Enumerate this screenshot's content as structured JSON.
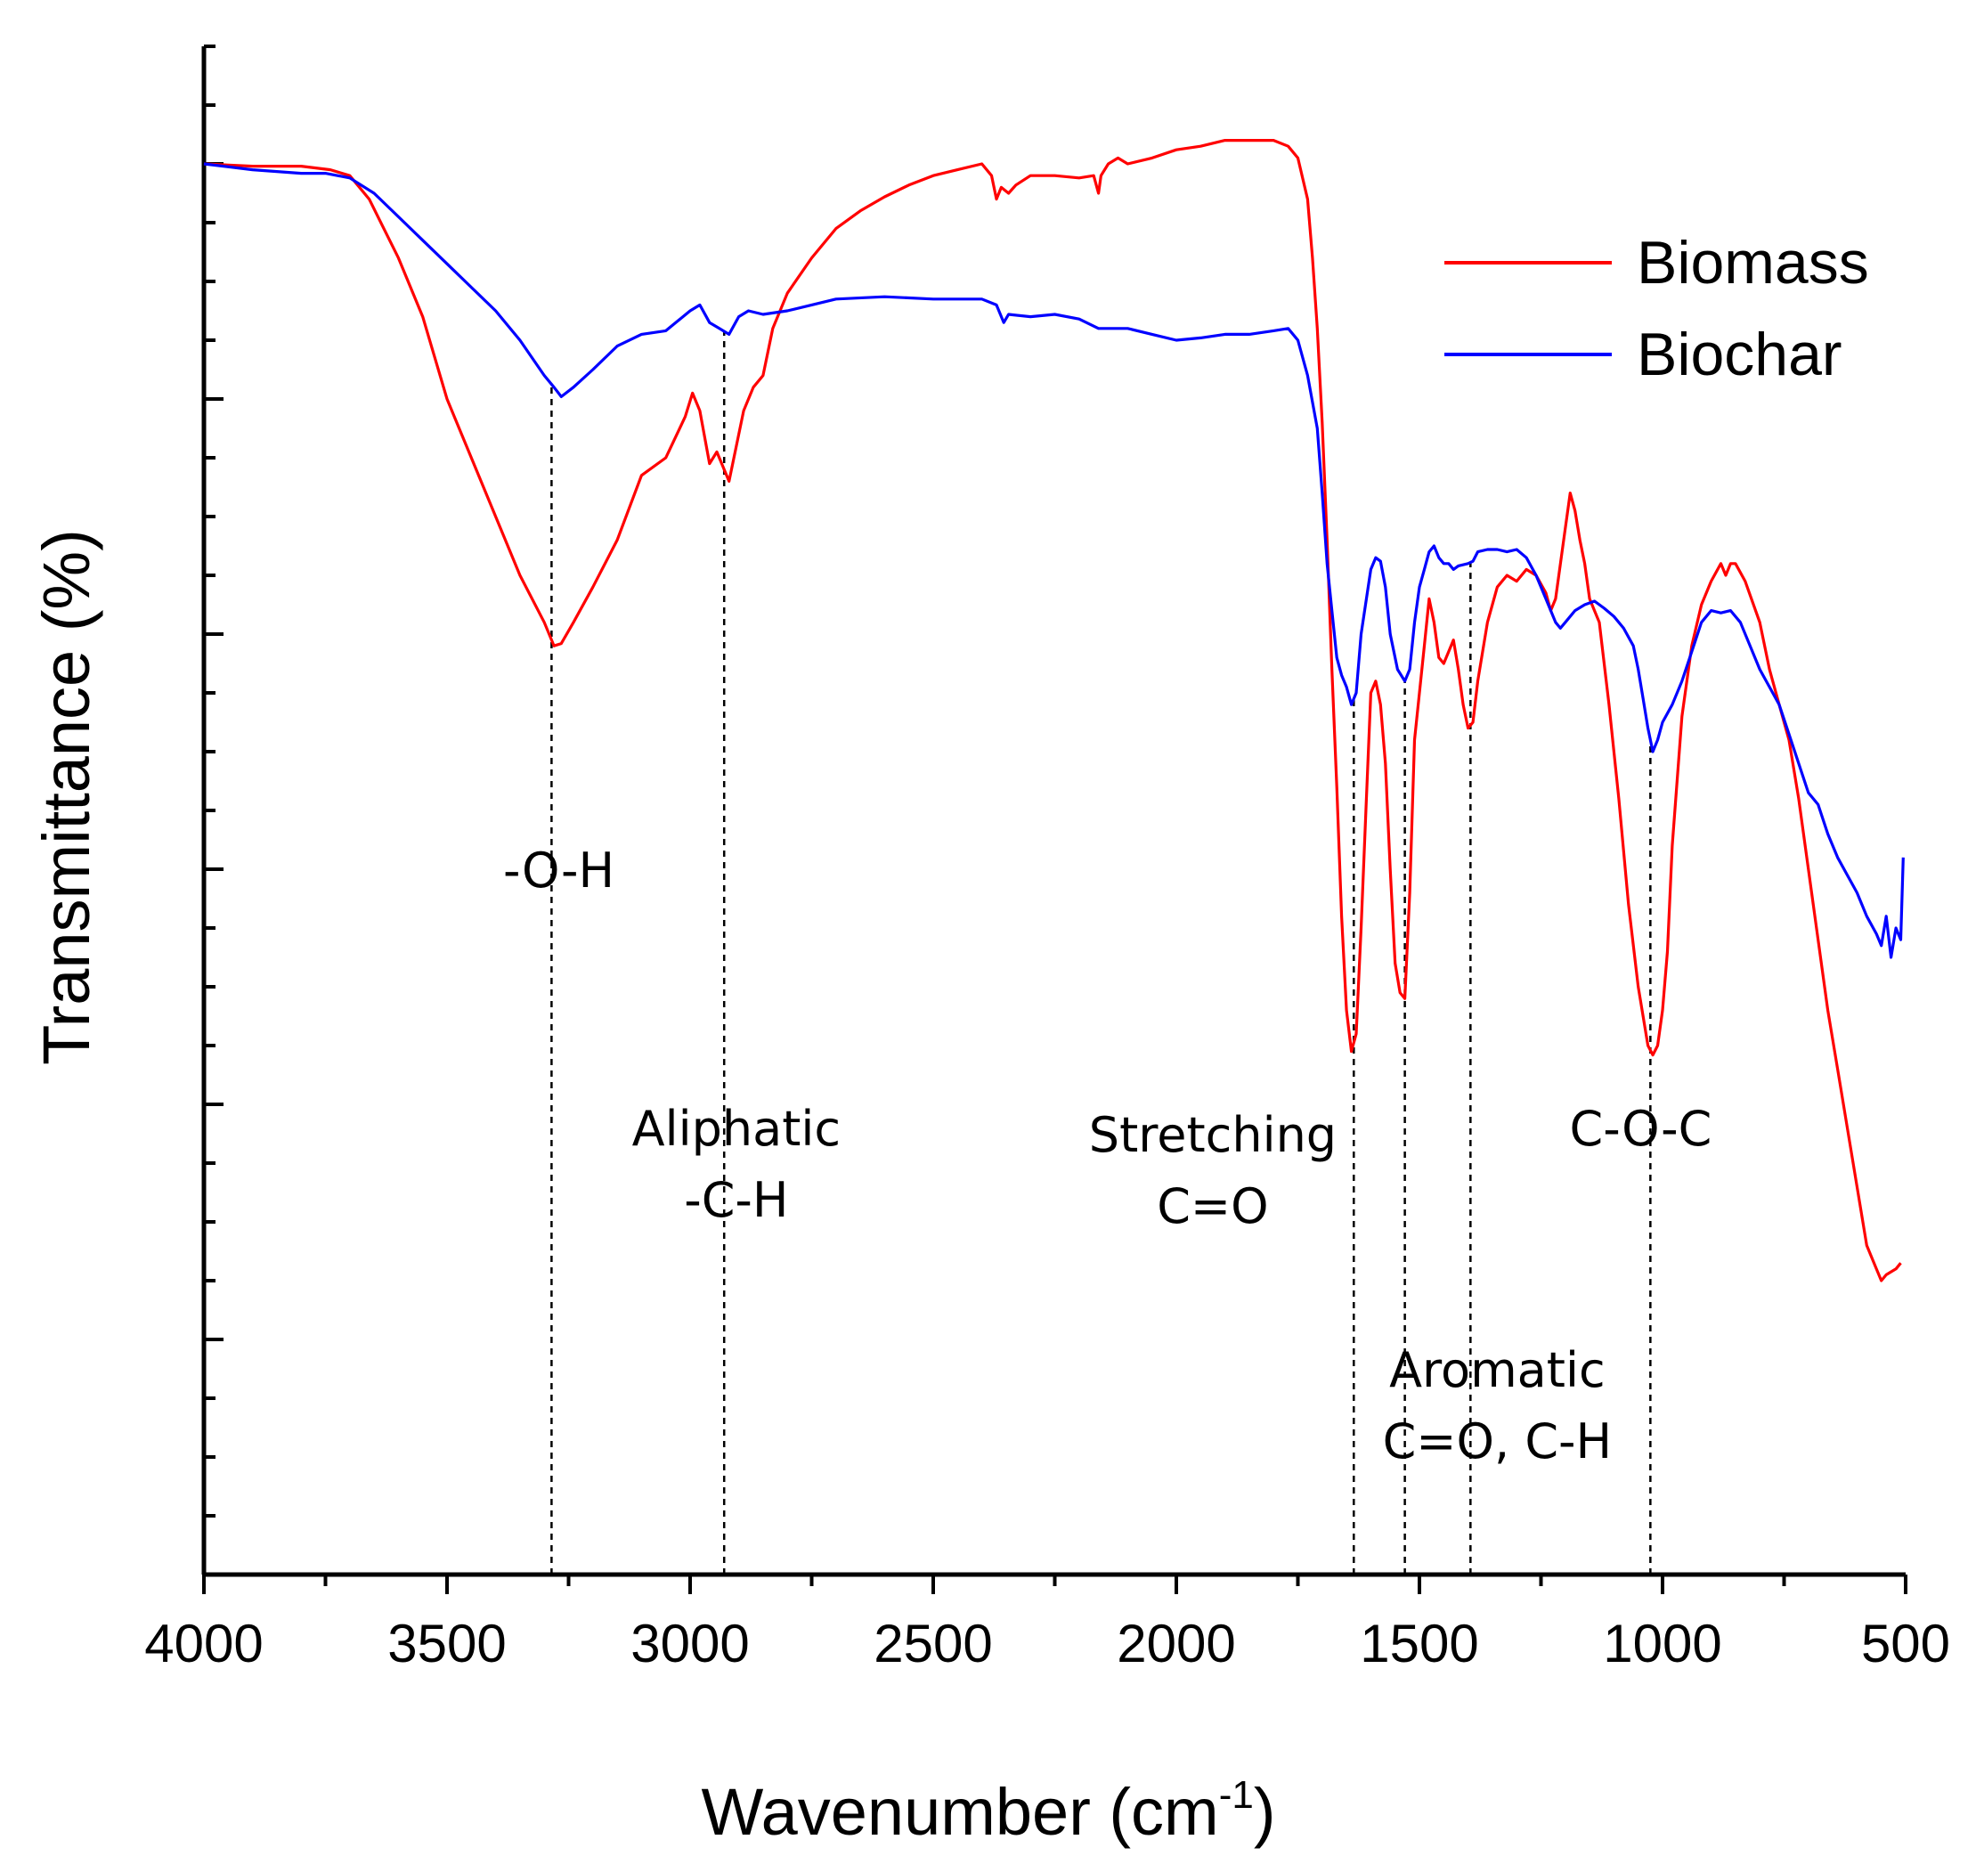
{
  "chart_data": {
    "type": "line",
    "title": "",
    "xlabel": "Wavenumber (cm",
    "xlabel_sup": "-1",
    "xlabel_close": ")",
    "ylabel": "Transmittance (%)",
    "xlim": [
      4000,
      500
    ],
    "ylim": [
      0,
      13
    ],
    "x_ticks": [
      4000,
      3500,
      3000,
      2500,
      2000,
      1500,
      1000,
      500
    ],
    "x_tick_labels": [
      "4000",
      "3500",
      "3000",
      "2500",
      "2000",
      "1500",
      "1000",
      "500"
    ],
    "y_tick_labels_shown": false,
    "legend_position": "top-right",
    "series": [
      {
        "name": "Biomass",
        "color": "#ff0000",
        "points": [
          [
            4000,
            12.0
          ],
          [
            3900,
            11.98
          ],
          [
            3800,
            11.98
          ],
          [
            3740,
            11.95
          ],
          [
            3700,
            11.9
          ],
          [
            3660,
            11.7
          ],
          [
            3600,
            11.2
          ],
          [
            3550,
            10.7
          ],
          [
            3500,
            10.0
          ],
          [
            3450,
            9.5
          ],
          [
            3400,
            9.0
          ],
          [
            3350,
            8.5
          ],
          [
            3300,
            8.1
          ],
          [
            3280,
            7.9
          ],
          [
            3265,
            7.92
          ],
          [
            3240,
            8.1
          ],
          [
            3200,
            8.4
          ],
          [
            3150,
            8.8
          ],
          [
            3100,
            9.35
          ],
          [
            3050,
            9.5
          ],
          [
            3010,
            9.85
          ],
          [
            2995,
            10.05
          ],
          [
            2980,
            9.9
          ],
          [
            2960,
            9.45
          ],
          [
            2945,
            9.55
          ],
          [
            2935,
            9.45
          ],
          [
            2920,
            9.3
          ],
          [
            2905,
            9.6
          ],
          [
            2890,
            9.9
          ],
          [
            2870,
            10.1
          ],
          [
            2850,
            10.2
          ],
          [
            2830,
            10.6
          ],
          [
            2800,
            10.9
          ],
          [
            2750,
            11.2
          ],
          [
            2700,
            11.45
          ],
          [
            2650,
            11.6
          ],
          [
            2600,
            11.72
          ],
          [
            2550,
            11.82
          ],
          [
            2500,
            11.9
          ],
          [
            2450,
            11.95
          ],
          [
            2400,
            12.0
          ],
          [
            2380,
            11.9
          ],
          [
            2370,
            11.7
          ],
          [
            2360,
            11.8
          ],
          [
            2345,
            11.75
          ],
          [
            2330,
            11.82
          ],
          [
            2300,
            11.9
          ],
          [
            2250,
            11.9
          ],
          [
            2200,
            11.88
          ],
          [
            2170,
            11.9
          ],
          [
            2160,
            11.75
          ],
          [
            2155,
            11.9
          ],
          [
            2140,
            12.0
          ],
          [
            2120,
            12.05
          ],
          [
            2100,
            12.0
          ],
          [
            2050,
            12.05
          ],
          [
            2000,
            12.12
          ],
          [
            1950,
            12.15
          ],
          [
            1900,
            12.2
          ],
          [
            1850,
            12.2
          ],
          [
            1800,
            12.2
          ],
          [
            1770,
            12.15
          ],
          [
            1750,
            12.05
          ],
          [
            1730,
            11.7
          ],
          [
            1720,
            11.2
          ],
          [
            1710,
            10.6
          ],
          [
            1700,
            9.8
          ],
          [
            1690,
            8.8
          ],
          [
            1680,
            7.7
          ],
          [
            1670,
            6.7
          ],
          [
            1660,
            5.6
          ],
          [
            1650,
            4.8
          ],
          [
            1640,
            4.45
          ],
          [
            1630,
            4.6
          ],
          [
            1620,
            5.5
          ],
          [
            1610,
            6.5
          ],
          [
            1600,
            7.5
          ],
          [
            1590,
            7.6
          ],
          [
            1580,
            7.4
          ],
          [
            1570,
            6.9
          ],
          [
            1560,
            6.0
          ],
          [
            1550,
            5.2
          ],
          [
            1540,
            4.95
          ],
          [
            1530,
            4.9
          ],
          [
            1520,
            5.8
          ],
          [
            1510,
            7.1
          ],
          [
            1500,
            7.5
          ],
          [
            1490,
            7.9
          ],
          [
            1480,
            8.3
          ],
          [
            1470,
            8.1
          ],
          [
            1460,
            7.8
          ],
          [
            1450,
            7.75
          ],
          [
            1440,
            7.85
          ],
          [
            1430,
            7.95
          ],
          [
            1420,
            7.7
          ],
          [
            1410,
            7.4
          ],
          [
            1400,
            7.2
          ],
          [
            1390,
            7.25
          ],
          [
            1380,
            7.6
          ],
          [
            1360,
            8.1
          ],
          [
            1340,
            8.4
          ],
          [
            1320,
            8.5
          ],
          [
            1300,
            8.45
          ],
          [
            1280,
            8.55
          ],
          [
            1260,
            8.5
          ],
          [
            1240,
            8.35
          ],
          [
            1230,
            8.2
          ],
          [
            1220,
            8.3
          ],
          [
            1200,
            8.9
          ],
          [
            1190,
            9.2
          ],
          [
            1180,
            9.05
          ],
          [
            1170,
            8.8
          ],
          [
            1160,
            8.6
          ],
          [
            1150,
            8.3
          ],
          [
            1130,
            8.1
          ],
          [
            1110,
            7.4
          ],
          [
            1090,
            6.6
          ],
          [
            1070,
            5.7
          ],
          [
            1050,
            5.0
          ],
          [
            1030,
            4.5
          ],
          [
            1020,
            4.42
          ],
          [
            1010,
            4.5
          ],
          [
            1000,
            4.8
          ],
          [
            990,
            5.3
          ],
          [
            980,
            6.2
          ],
          [
            960,
            7.3
          ],
          [
            940,
            7.9
          ],
          [
            920,
            8.25
          ],
          [
            900,
            8.45
          ],
          [
            880,
            8.6
          ],
          [
            870,
            8.5
          ],
          [
            860,
            8.6
          ],
          [
            850,
            8.6
          ],
          [
            830,
            8.45
          ],
          [
            800,
            8.1
          ],
          [
            780,
            7.7
          ],
          [
            760,
            7.4
          ],
          [
            740,
            7.1
          ],
          [
            720,
            6.6
          ],
          [
            700,
            6.0
          ],
          [
            680,
            5.4
          ],
          [
            660,
            4.8
          ],
          [
            640,
            4.3
          ],
          [
            620,
            3.8
          ],
          [
            600,
            3.3
          ],
          [
            580,
            2.8
          ],
          [
            560,
            2.6
          ],
          [
            550,
            2.5
          ],
          [
            540,
            2.55
          ],
          [
            520,
            2.6
          ],
          [
            510,
            2.65
          ]
        ]
      },
      {
        "name": "Biochar",
        "color": "#0000ff",
        "points": [
          [
            4000,
            12.0
          ],
          [
            3900,
            11.95
          ],
          [
            3800,
            11.92
          ],
          [
            3750,
            11.92
          ],
          [
            3700,
            11.88
          ],
          [
            3650,
            11.75
          ],
          [
            3600,
            11.55
          ],
          [
            3550,
            11.35
          ],
          [
            3500,
            11.15
          ],
          [
            3450,
            10.95
          ],
          [
            3400,
            10.75
          ],
          [
            3350,
            10.5
          ],
          [
            3300,
            10.2
          ],
          [
            3280,
            10.1
          ],
          [
            3265,
            10.02
          ],
          [
            3240,
            10.1
          ],
          [
            3200,
            10.25
          ],
          [
            3150,
            10.45
          ],
          [
            3100,
            10.55
          ],
          [
            3050,
            10.58
          ],
          [
            3000,
            10.75
          ],
          [
            2980,
            10.8
          ],
          [
            2960,
            10.65
          ],
          [
            2940,
            10.6
          ],
          [
            2920,
            10.55
          ],
          [
            2900,
            10.7
          ],
          [
            2880,
            10.75
          ],
          [
            2850,
            10.72
          ],
          [
            2800,
            10.75
          ],
          [
            2750,
            10.8
          ],
          [
            2700,
            10.85
          ],
          [
            2600,
            10.87
          ],
          [
            2500,
            10.85
          ],
          [
            2400,
            10.85
          ],
          [
            2370,
            10.8
          ],
          [
            2355,
            10.65
          ],
          [
            2345,
            10.72
          ],
          [
            2300,
            10.7
          ],
          [
            2250,
            10.72
          ],
          [
            2200,
            10.68
          ],
          [
            2160,
            10.6
          ],
          [
            2100,
            10.6
          ],
          [
            2050,
            10.55
          ],
          [
            2000,
            10.5
          ],
          [
            1950,
            10.52
          ],
          [
            1900,
            10.55
          ],
          [
            1850,
            10.55
          ],
          [
            1800,
            10.58
          ],
          [
            1770,
            10.6
          ],
          [
            1750,
            10.5
          ],
          [
            1730,
            10.2
          ],
          [
            1710,
            9.75
          ],
          [
            1700,
            9.2
          ],
          [
            1690,
            8.6
          ],
          [
            1680,
            8.2
          ],
          [
            1670,
            7.8
          ],
          [
            1660,
            7.65
          ],
          [
            1650,
            7.55
          ],
          [
            1640,
            7.4
          ],
          [
            1630,
            7.5
          ],
          [
            1620,
            8.0
          ],
          [
            1600,
            8.55
          ],
          [
            1590,
            8.65
          ],
          [
            1580,
            8.62
          ],
          [
            1570,
            8.4
          ],
          [
            1560,
            8.0
          ],
          [
            1545,
            7.7
          ],
          [
            1530,
            7.6
          ],
          [
            1520,
            7.7
          ],
          [
            1510,
            8.1
          ],
          [
            1500,
            8.4
          ],
          [
            1490,
            8.55
          ],
          [
            1480,
            8.7
          ],
          [
            1470,
            8.75
          ],
          [
            1460,
            8.65
          ],
          [
            1450,
            8.6
          ],
          [
            1440,
            8.6
          ],
          [
            1430,
            8.55
          ],
          [
            1420,
            8.58
          ],
          [
            1400,
            8.6
          ],
          [
            1390,
            8.62
          ],
          [
            1380,
            8.7
          ],
          [
            1360,
            8.72
          ],
          [
            1340,
            8.72
          ],
          [
            1320,
            8.7
          ],
          [
            1300,
            8.72
          ],
          [
            1280,
            8.65
          ],
          [
            1260,
            8.5
          ],
          [
            1240,
            8.3
          ],
          [
            1220,
            8.1
          ],
          [
            1210,
            8.05
          ],
          [
            1200,
            8.1
          ],
          [
            1180,
            8.2
          ],
          [
            1160,
            8.25
          ],
          [
            1140,
            8.28
          ],
          [
            1120,
            8.22
          ],
          [
            1100,
            8.15
          ],
          [
            1080,
            8.05
          ],
          [
            1060,
            7.9
          ],
          [
            1050,
            7.7
          ],
          [
            1040,
            7.45
          ],
          [
            1030,
            7.2
          ],
          [
            1020,
            7.0
          ],
          [
            1010,
            7.1
          ],
          [
            1000,
            7.25
          ],
          [
            980,
            7.4
          ],
          [
            960,
            7.6
          ],
          [
            940,
            7.85
          ],
          [
            920,
            8.1
          ],
          [
            900,
            8.2
          ],
          [
            880,
            8.18
          ],
          [
            860,
            8.2
          ],
          [
            840,
            8.1
          ],
          [
            820,
            7.9
          ],
          [
            800,
            7.7
          ],
          [
            780,
            7.55
          ],
          [
            760,
            7.4
          ],
          [
            740,
            7.15
          ],
          [
            720,
            6.9
          ],
          [
            700,
            6.65
          ],
          [
            680,
            6.55
          ],
          [
            660,
            6.3
          ],
          [
            640,
            6.1
          ],
          [
            620,
            5.95
          ],
          [
            600,
            5.8
          ],
          [
            580,
            5.6
          ],
          [
            560,
            5.45
          ],
          [
            550,
            5.35
          ],
          [
            540,
            5.6
          ],
          [
            530,
            5.25
          ],
          [
            520,
            5.5
          ],
          [
            510,
            5.4
          ],
          [
            505,
            6.1
          ]
        ]
      }
    ],
    "annotations": [
      {
        "lines": [
          "-O-H"
        ],
        "x": 3285,
        "anchor_x": 3270,
        "text_y": 5.85
      },
      {
        "lines": [
          "Aliphatic",
          "-C-H"
        ],
        "x": 2930,
        "anchor_x": 2905,
        "text_y": 3.65
      },
      {
        "lines": [
          "Stretching",
          "C=O"
        ],
        "x": 1635,
        "anchor_x": 1925,
        "text_y": 3.6
      },
      {
        "lines": [
          "Aromatic",
          "C=O, C-H"
        ],
        "x": 1530,
        "anchor_x": 1340,
        "text_y": 1.6
      },
      {
        "x": 1395
      },
      {
        "lines": [
          "C-O-C"
        ],
        "x": 1025,
        "anchor_x": 1045,
        "text_y": 3.65
      }
    ]
  }
}
